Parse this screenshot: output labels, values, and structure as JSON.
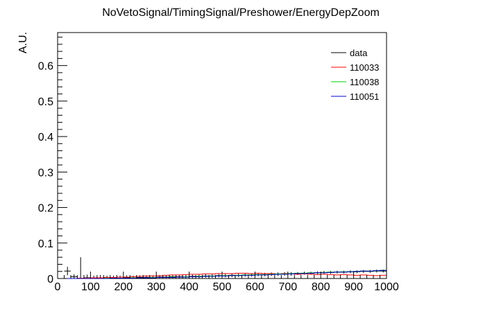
{
  "chart_data": {
    "type": "line",
    "title": "NoVetoSignal/TimingSignal/Preshower/EnergyDepZoom",
    "xlabel": "",
    "ylabel": "A.U.",
    "xlim": [
      0,
      1000
    ],
    "ylim": [
      0,
      0.693
    ],
    "xticks": [
      0,
      100,
      200,
      300,
      400,
      500,
      600,
      700,
      800,
      900,
      1000
    ],
    "xtick_labels": [
      "0",
      "100",
      "200",
      "300",
      "400",
      "500",
      "600",
      "700",
      "800",
      "900",
      "1000"
    ],
    "yticks": [
      0,
      0.1,
      0.2,
      0.3,
      0.4,
      0.5,
      0.6
    ],
    "ytick_labels": [
      "0",
      "0.1",
      "0.2",
      "0.3",
      "0.4",
      "0.5",
      "0.6"
    ],
    "legend_position": "top-right",
    "grid": false,
    "bin_edges": [
      0,
      20,
      40,
      60,
      80,
      100,
      120,
      140,
      160,
      180,
      200,
      220,
      240,
      260,
      280,
      300,
      320,
      340,
      360,
      380,
      400,
      420,
      440,
      460,
      480,
      500,
      520,
      540,
      560,
      580,
      600,
      620,
      640,
      660,
      680,
      700,
      720,
      740,
      760,
      780,
      800,
      820,
      840,
      860,
      880,
      900,
      920,
      940,
      960,
      980,
      1000
    ],
    "series": [
      {
        "name": "data",
        "color": "#000000",
        "style": "points",
        "values": [
          0.0,
          0.021,
          0.005,
          0.0,
          0.002,
          0.0,
          0.002,
          0.001,
          0.001,
          0.001,
          0.002,
          0.002,
          0.003,
          0.003,
          0.003,
          0.004,
          0.004,
          0.005,
          0.005,
          0.005,
          0.006,
          0.006,
          0.007,
          0.007,
          0.008,
          0.008,
          0.009,
          0.009,
          0.01,
          0.01,
          0.011,
          0.011,
          0.012,
          0.012,
          0.013,
          0.013,
          0.014,
          0.015,
          0.015,
          0.016,
          0.017,
          0.017,
          0.018,
          0.018,
          0.019,
          0.019,
          0.02,
          0.02,
          0.021,
          0.021
        ],
        "errors": [
          0.0,
          0.012,
          0.007,
          0.06,
          0.009,
          0.008,
          0.008,
          0.007,
          0.007,
          0.007,
          0.007,
          0.006,
          0.006,
          0.006,
          0.006,
          0.006,
          0.006,
          0.005,
          0.005,
          0.005,
          0.005,
          0.005,
          0.005,
          0.005,
          0.005,
          0.005,
          0.005,
          0.005,
          0.005,
          0.005,
          0.005,
          0.005,
          0.005,
          0.005,
          0.005,
          0.005,
          0.004,
          0.004,
          0.004,
          0.004,
          0.004,
          0.004,
          0.004,
          0.004,
          0.004,
          0.004,
          0.004,
          0.004,
          0.004,
          0.004
        ]
      },
      {
        "name": "110033",
        "color": "#ff0000",
        "style": "step",
        "values": [
          0.0,
          0.0,
          0.0,
          0.001,
          0.001,
          0.002,
          0.002,
          0.003,
          0.003,
          0.004,
          0.004,
          0.005,
          0.006,
          0.007,
          0.007,
          0.008,
          0.009,
          0.01,
          0.01,
          0.011,
          0.012,
          0.012,
          0.013,
          0.013,
          0.014,
          0.014,
          0.014,
          0.015,
          0.015,
          0.014,
          0.015,
          0.014,
          0.014,
          0.013,
          0.014,
          0.013,
          0.012,
          0.013,
          0.012,
          0.011,
          0.012,
          0.011,
          0.01,
          0.011,
          0.01,
          0.009,
          0.01,
          0.009,
          0.008,
          0.009
        ]
      },
      {
        "name": "110038",
        "color": "#00cc00",
        "style": "step",
        "values": [
          0.0,
          0.0,
          0.0,
          0.0,
          0.0,
          0.0,
          0.0,
          0.001,
          0.001,
          0.001,
          0.001,
          0.002,
          0.002,
          0.002,
          0.003,
          0.003,
          0.003,
          0.004,
          0.004,
          0.005,
          0.005,
          0.006,
          0.006,
          0.007,
          0.007,
          0.008,
          0.008,
          0.009,
          0.01,
          0.01,
          0.011,
          0.011,
          0.012,
          0.013,
          0.013,
          0.014,
          0.015,
          0.015,
          0.016,
          0.016,
          0.017,
          0.018,
          0.018,
          0.019,
          0.019,
          0.02,
          0.021,
          0.021,
          0.022,
          0.023
        ]
      },
      {
        "name": "110051",
        "color": "#0000cc",
        "style": "step",
        "values": [
          0.0,
          0.0,
          0.0,
          0.0,
          0.0,
          0.0,
          0.0,
          0.0,
          0.001,
          0.001,
          0.001,
          0.001,
          0.002,
          0.002,
          0.002,
          0.003,
          0.003,
          0.003,
          0.004,
          0.004,
          0.005,
          0.005,
          0.006,
          0.006,
          0.007,
          0.007,
          0.008,
          0.008,
          0.009,
          0.009,
          0.01,
          0.01,
          0.011,
          0.012,
          0.012,
          0.013,
          0.014,
          0.014,
          0.015,
          0.016,
          0.016,
          0.017,
          0.018,
          0.018,
          0.019,
          0.02,
          0.021,
          0.021,
          0.022,
          0.023
        ]
      }
    ]
  }
}
